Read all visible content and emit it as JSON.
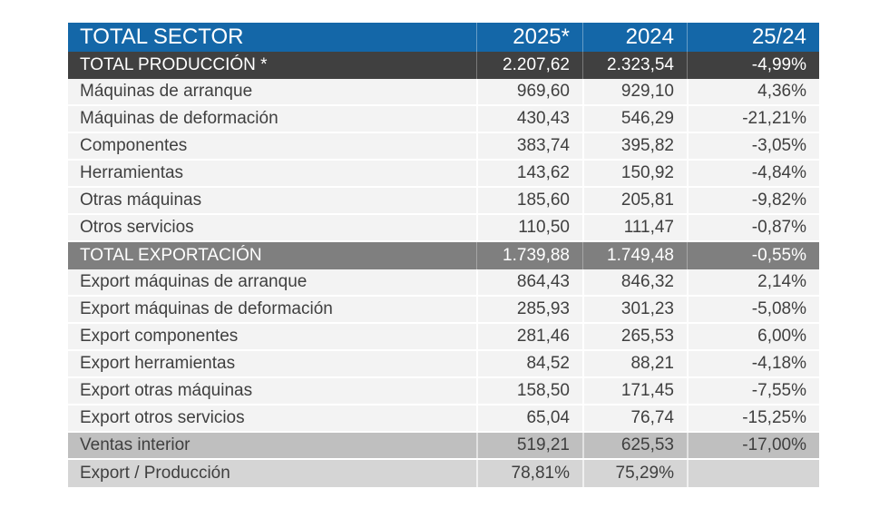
{
  "colors": {
    "header_blue": "#1467A8",
    "dark_row": "#404040",
    "medium_gray_row": "#7F7F7F",
    "gray_row": "#BFBFBF",
    "lightgray_row": "#D5D5D5",
    "light_row": "#F3F3F3",
    "text_dark": "#3F3F3F",
    "text_light": "#FFFFFF"
  },
  "table": {
    "header": {
      "title": "TOTAL SECTOR",
      "col_2025": "2025*",
      "col_2024": "2024",
      "col_change": "25/24"
    },
    "rows": [
      {
        "label": "TOTAL PRODUCCIÓN *",
        "v2025": "2.207,62",
        "v2024": "2.323,54",
        "change": "-4,99%",
        "style": "dark"
      },
      {
        "label": "Máquinas de arranque",
        "v2025": "969,60",
        "v2024": "929,10",
        "change": "4,36%",
        "style": "light"
      },
      {
        "label": "Máquinas de deformación",
        "v2025": "430,43",
        "v2024": "546,29",
        "change": "-21,21%",
        "style": "light"
      },
      {
        "label": "Componentes",
        "v2025": "383,74",
        "v2024": "395,82",
        "change": "-3,05%",
        "style": "light"
      },
      {
        "label": "Herramientas",
        "v2025": "143,62",
        "v2024": "150,92",
        "change": "-4,84%",
        "style": "light"
      },
      {
        "label": "Otras máquinas",
        "v2025": "185,60",
        "v2024": "205,81",
        "change": "-9,82%",
        "style": "light"
      },
      {
        "label": "Otros servicios",
        "v2025": "110,50",
        "v2024": "111,47",
        "change": "-0,87%",
        "style": "light"
      },
      {
        "label": "TOTAL EXPORTACIÓN",
        "v2025": "1.739,88",
        "v2024": "1.749,48",
        "change": "-0,55%",
        "style": "medium"
      },
      {
        "label": "Export máquinas de arranque",
        "v2025": "864,43",
        "v2024": "846,32",
        "change": "2,14%",
        "style": "light"
      },
      {
        "label": "Export máquinas de deformación",
        "v2025": "285,93",
        "v2024": "301,23",
        "change": "-5,08%",
        "style": "light"
      },
      {
        "label": "Export componentes",
        "v2025": "281,46",
        "v2024": "265,53",
        "change": "6,00%",
        "style": "light"
      },
      {
        "label": "Export herramientas",
        "v2025": "84,52",
        "v2024": "88,21",
        "change": "-4,18%",
        "style": "light"
      },
      {
        "label": "Export otras máquinas",
        "v2025": "158,50",
        "v2024": "171,45",
        "change": "-7,55%",
        "style": "light"
      },
      {
        "label": "Export otros servicios",
        "v2025": "65,04",
        "v2024": "76,74",
        "change": "-15,25%",
        "style": "light"
      },
      {
        "label": "Ventas interior",
        "v2025": "519,21",
        "v2024": "625,53",
        "change": "-17,00%",
        "style": "gray"
      },
      {
        "label": "Export / Producción",
        "v2025": "78,81%",
        "v2024": "75,29%",
        "change": "",
        "style": "lightgray"
      }
    ]
  },
  "chart_data": {
    "type": "table",
    "title": "TOTAL SECTOR",
    "columns": [
      "TOTAL SECTOR",
      "2025*",
      "2024",
      "25/24"
    ],
    "rows": [
      [
        "TOTAL PRODUCCIÓN *",
        "2.207,62",
        "2.323,54",
        "-4,99%"
      ],
      [
        "Máquinas de arranque",
        "969,60",
        "929,10",
        "4,36%"
      ],
      [
        "Máquinas de deformación",
        "430,43",
        "546,29",
        "-21,21%"
      ],
      [
        "Componentes",
        "383,74",
        "395,82",
        "-3,05%"
      ],
      [
        "Herramientas",
        "143,62",
        "150,92",
        "-4,84%"
      ],
      [
        "Otras máquinas",
        "185,60",
        "205,81",
        "-9,82%"
      ],
      [
        "Otros servicios",
        "110,50",
        "111,47",
        "-0,87%"
      ],
      [
        "TOTAL EXPORTACIÓN",
        "1.739,88",
        "1.749,48",
        "-0,55%"
      ],
      [
        "Export máquinas de arranque",
        "864,43",
        "846,32",
        "2,14%"
      ],
      [
        "Export máquinas de deformación",
        "285,93",
        "301,23",
        "-5,08%"
      ],
      [
        "Export componentes",
        "281,46",
        "265,53",
        "6,00%"
      ],
      [
        "Export herramientas",
        "84,52",
        "88,21",
        "-4,18%"
      ],
      [
        "Export otras máquinas",
        "158,50",
        "171,45",
        "-7,55%"
      ],
      [
        "Export otros servicios",
        "65,04",
        "76,74",
        "-15,25%"
      ],
      [
        "Ventas interior",
        "519,21",
        "625,53",
        "-17,00%"
      ],
      [
        "Export / Producción",
        "78,81%",
        "75,29%",
        ""
      ]
    ]
  }
}
